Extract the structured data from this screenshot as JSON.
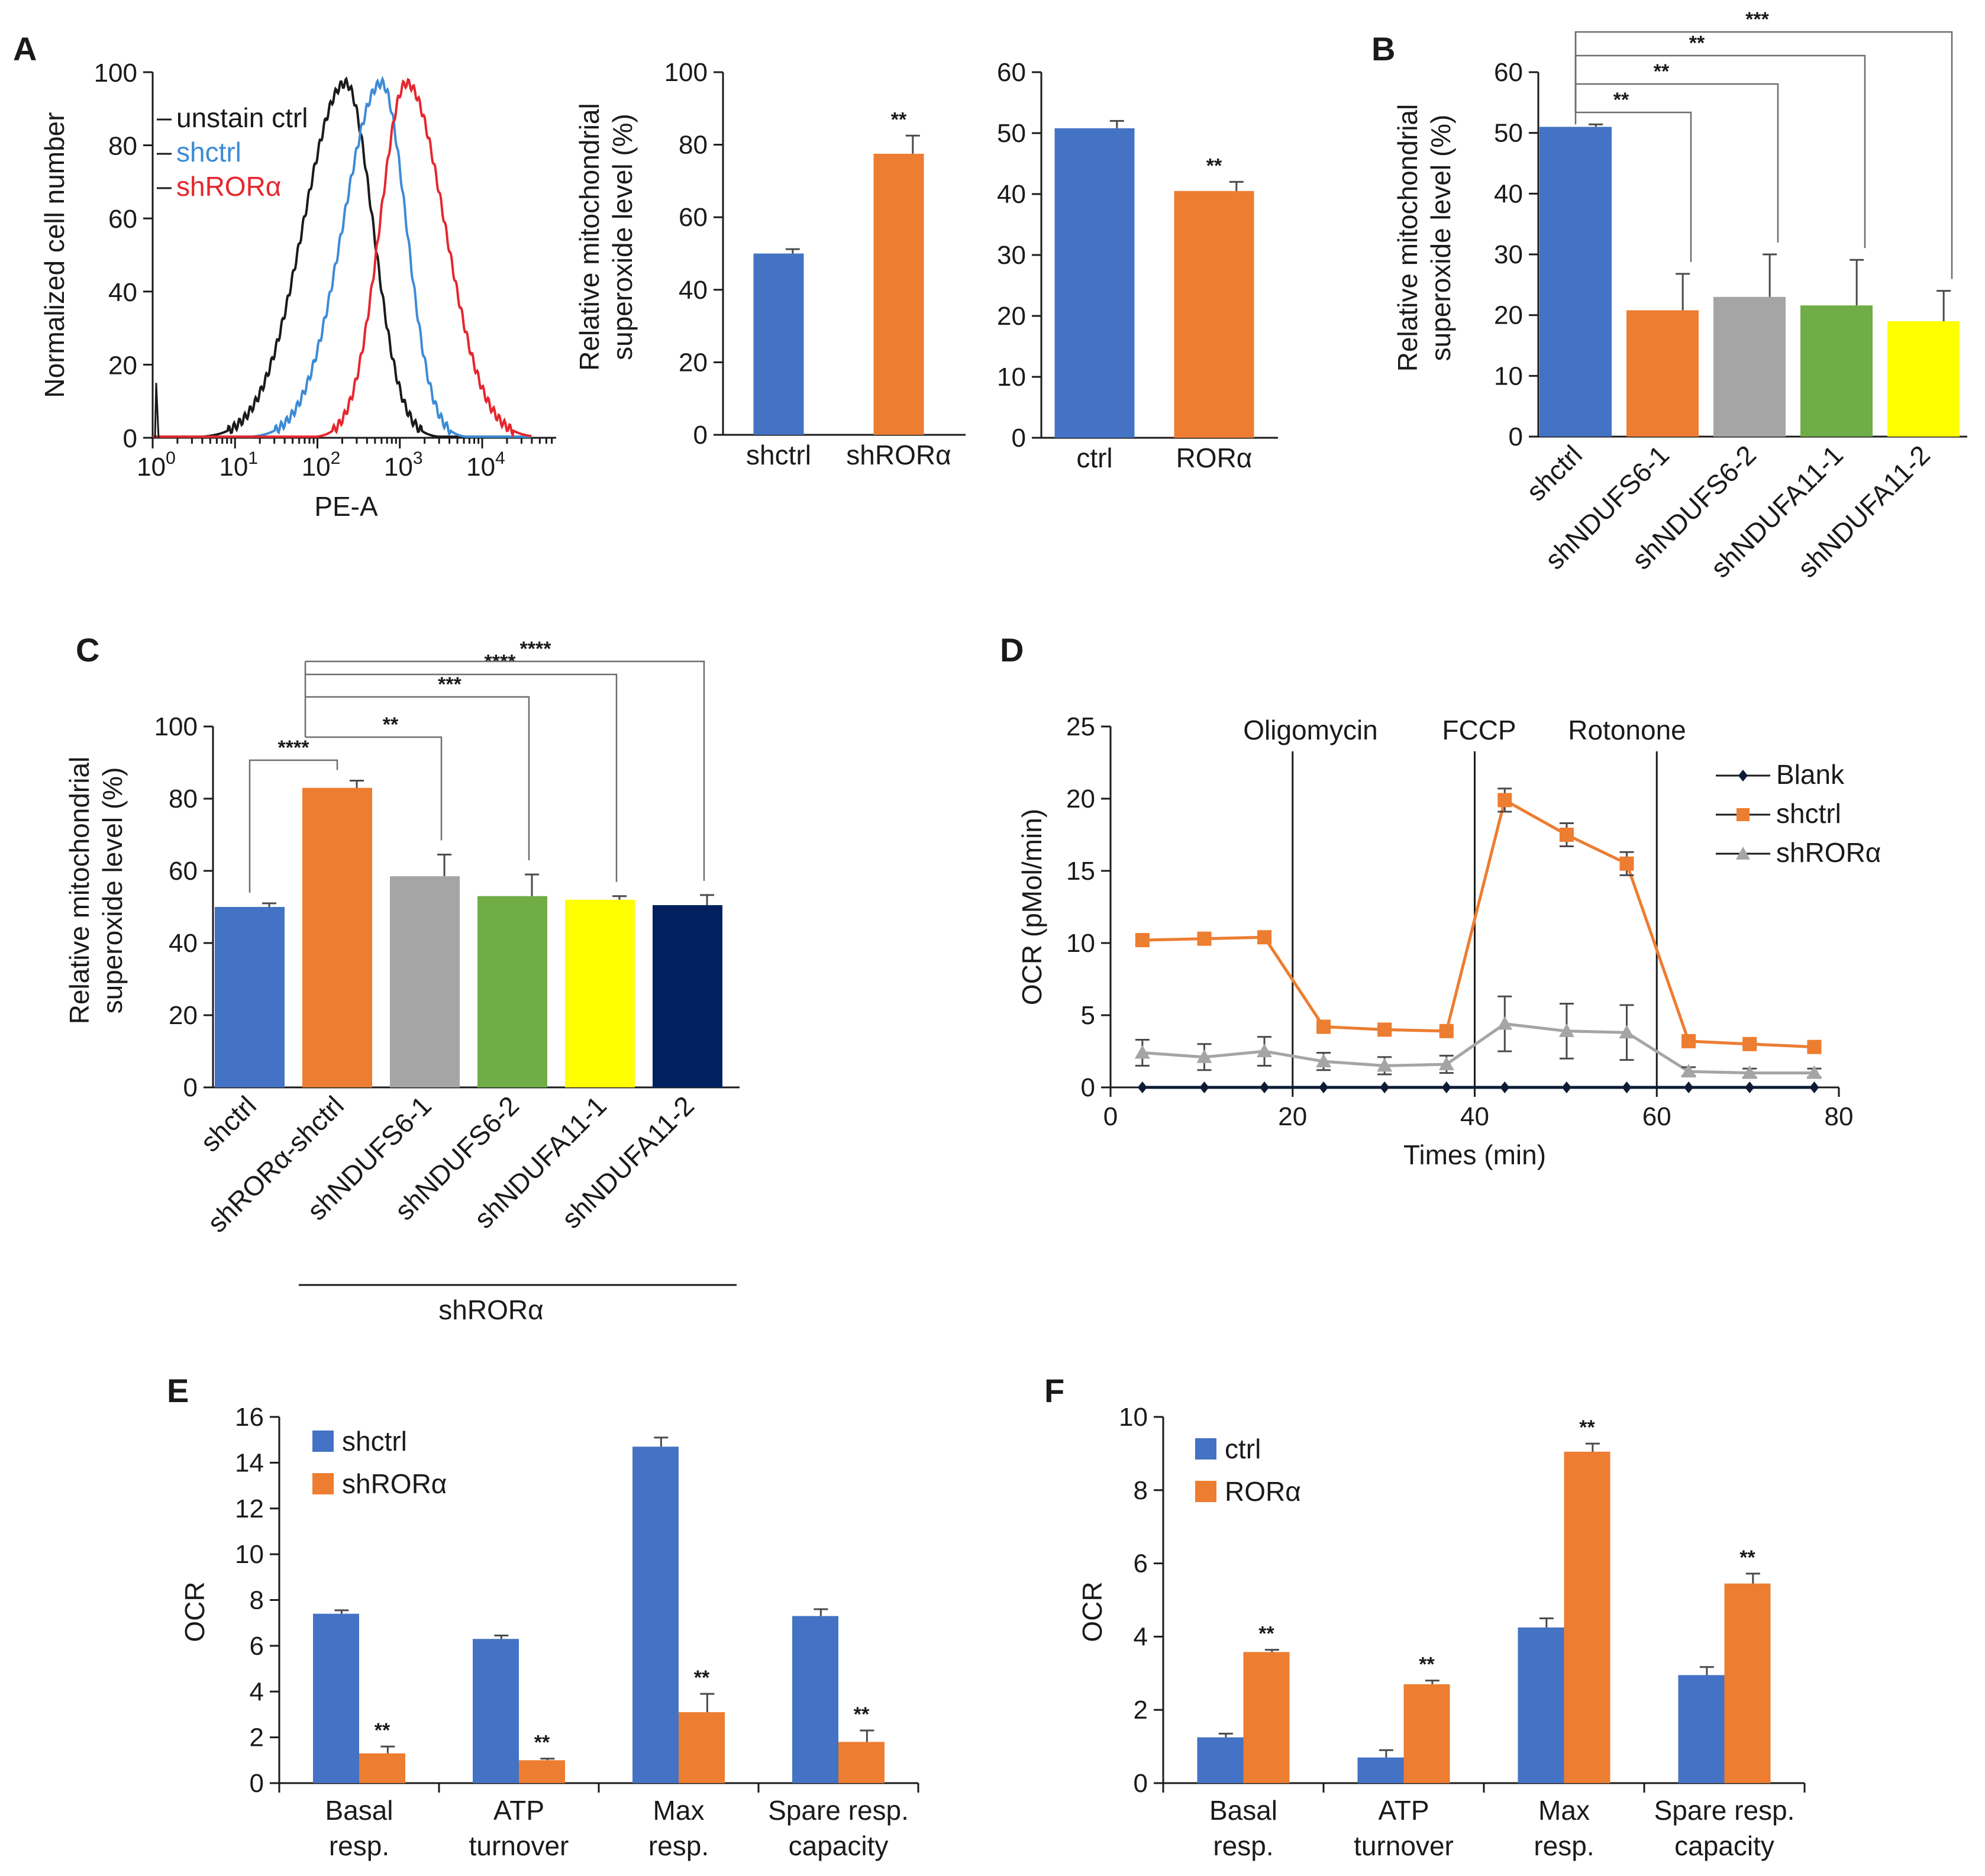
{
  "chart_data": [
    {
      "id": "A1",
      "panel": "A",
      "type": "line",
      "subtype": "flow-cytometry-histogram",
      "xlabel": "PE-A",
      "ylabel": "Normalized cell number",
      "xscale": "log",
      "xlim": [
        1,
        60000
      ],
      "ylim": [
        0,
        100
      ],
      "yticks": [
        0,
        20,
        40,
        60,
        80,
        100
      ],
      "xticks": [
        {
          "base": "10",
          "exp": "0"
        },
        {
          "base": "10",
          "exp": "1"
        },
        {
          "base": "10",
          "exp": "2"
        },
        {
          "base": "10",
          "exp": "3"
        },
        {
          "base": "10",
          "exp": "4"
        }
      ],
      "legend_position": "top-left",
      "series": [
        {
          "name": "unstain ctrl",
          "color": "#1a1a1a",
          "peak_x": 220,
          "sigma_log": 0.33,
          "skew": "left-tail",
          "peak_y": 97
        },
        {
          "name": "shctrl",
          "color": "#3d8bd6",
          "peak_x": 600,
          "sigma_log": 0.3,
          "skew": "left-tail",
          "peak_y": 97
        },
        {
          "name": "shRORα",
          "color": "#e6262e",
          "peak_x": 1200,
          "sigma_log": 0.32,
          "skew": "right-tail",
          "peak_y": 97
        }
      ]
    },
    {
      "id": "A2",
      "panel": "A",
      "type": "bar",
      "ylabel_lines": [
        "Relative mitochondrial",
        "superoxide level (%)"
      ],
      "ylim": [
        0,
        100
      ],
      "yticks": [
        0,
        20,
        40,
        60,
        80,
        100
      ],
      "categories": [
        "shctrl",
        "shRORα"
      ],
      "values": [
        50,
        77.5
      ],
      "errors": [
        1.2,
        5
      ],
      "colors": [
        "#4472c4",
        "#ed7d31"
      ],
      "annotations": [
        "",
        "**"
      ]
    },
    {
      "id": "A3",
      "panel": "A",
      "type": "bar",
      "ylabel_lines": [],
      "ylim": [
        0,
        60
      ],
      "yticks": [
        0,
        10,
        20,
        30,
        40,
        50,
        60
      ],
      "categories": [
        "ctrl",
        "RORα"
      ],
      "values": [
        50.8,
        40.5
      ],
      "errors": [
        1.2,
        1.5
      ],
      "colors": [
        "#4472c4",
        "#ed7d31"
      ],
      "annotations": [
        "",
        "**"
      ]
    },
    {
      "id": "B",
      "panel": "B",
      "type": "bar",
      "ylabel_lines": [
        "Relative mitochondrial",
        "superoxide level (%)"
      ],
      "ylim": [
        0,
        60
      ],
      "yticks": [
        0,
        10,
        20,
        30,
        40,
        50,
        60
      ],
      "categories": [
        "shctrl",
        "shNDUFS6-1",
        "shNDUFS6-2",
        "shNDUFA11-1",
        "shNDUFA11-2"
      ],
      "values": [
        51,
        20.8,
        23,
        21.6,
        19
      ],
      "errors": [
        0.4,
        6,
        7,
        7.5,
        5
      ],
      "colors": [
        "#4472c4",
        "#ed7d31",
        "#a5a5a5",
        "#70ad47",
        "#ffff00"
      ],
      "comparisons": [
        {
          "from": 0,
          "to": 1,
          "label": "**"
        },
        {
          "from": 0,
          "to": 2,
          "label": "**"
        },
        {
          "from": 0,
          "to": 3,
          "label": "**"
        },
        {
          "from": 0,
          "to": 4,
          "label": "***"
        }
      ]
    },
    {
      "id": "C",
      "panel": "C",
      "type": "bar",
      "ylabel_lines": [
        "Relative mitochondrial",
        "superoxide level (%)"
      ],
      "ylim": [
        0,
        100
      ],
      "yticks": [
        0,
        20,
        40,
        60,
        80,
        100
      ],
      "categories": [
        "shctrl",
        "shRORα-shctrl",
        "shNDUFS6-1",
        "shNDUFS6-2",
        "shNDUFA11-1",
        "shNDUFA11-2"
      ],
      "values": [
        50,
        83,
        58.5,
        53,
        52,
        50.5
      ],
      "errors": [
        1,
        2,
        6,
        6,
        1,
        2.8
      ],
      "colors": [
        "#4472c4",
        "#ed7d31",
        "#a5a5a5",
        "#70ad47",
        "#ffff00",
        "#002060"
      ],
      "group_label": "shRORα",
      "group_members": [
        1,
        2,
        3,
        4,
        5
      ],
      "comparisons": [
        {
          "from": 0,
          "to": 1,
          "label": "****"
        },
        {
          "from": 1,
          "to": 2,
          "label": "**"
        },
        {
          "from": 1,
          "to": 3,
          "label": "***"
        },
        {
          "from": 1,
          "to": 4,
          "label": "****"
        },
        {
          "from": 1,
          "to": 5,
          "label": "****"
        }
      ]
    },
    {
      "id": "D",
      "panel": "D",
      "type": "line",
      "xlabel": "Times (min)",
      "ylabel": "OCR (pMol/min)",
      "xlim": [
        0,
        80
      ],
      "ylim": [
        0,
        25
      ],
      "xticks": [
        0,
        20,
        40,
        60,
        80
      ],
      "yticks": [
        0,
        5,
        10,
        15,
        20,
        25
      ],
      "legend_position": "top-right",
      "events": [
        {
          "label": "Oligomycin",
          "x": 20,
          "color": "#1a1a1a"
        },
        {
          "label": "FCCP",
          "x": 40,
          "color": "#9c9c9c"
        },
        {
          "label": "Rotonone",
          "x": 60,
          "color": "#1a1a1a"
        }
      ],
      "x": [
        3.5,
        10.3,
        16.9,
        23.4,
        30.1,
        36.9,
        43.3,
        50.1,
        56.7,
        63.5,
        70.2,
        77.3
      ],
      "series": [
        {
          "name": "Blank",
          "color": "#0d1b35",
          "marker": "diamond",
          "values": [
            0,
            0,
            0,
            0,
            0,
            0,
            0,
            0,
            0,
            0,
            0,
            0
          ],
          "errors": [
            0,
            0,
            0,
            0,
            0,
            0,
            0,
            0,
            0,
            0,
            0,
            0
          ]
        },
        {
          "name": "shctrl",
          "color": "#ed7d31",
          "marker": "square",
          "values": [
            10.2,
            10.3,
            10.4,
            4.2,
            4.0,
            3.9,
            19.9,
            17.5,
            15.5,
            3.2,
            3.0,
            2.8
          ],
          "errors": [
            0.3,
            0.4,
            0.4,
            0.2,
            0.2,
            0.2,
            0.8,
            0.8,
            0.8,
            0.2,
            0.2,
            0.2
          ]
        },
        {
          "name": "shRORα",
          "color": "#a5a5a5",
          "marker": "triangle",
          "values": [
            2.4,
            2.1,
            2.5,
            1.8,
            1.5,
            1.6,
            4.4,
            3.9,
            3.8,
            1.1,
            1.0,
            1.0
          ],
          "errors": [
            0.9,
            0.9,
            1.0,
            0.6,
            0.6,
            0.6,
            1.9,
            1.9,
            1.9,
            0.3,
            0.3,
            0.3
          ]
        }
      ]
    },
    {
      "id": "E",
      "panel": "E",
      "type": "bar",
      "ylabel": "OCR",
      "ylim": [
        0,
        16
      ],
      "yticks": [
        0,
        2,
        4,
        6,
        8,
        10,
        12,
        14,
        16
      ],
      "categories": [
        [
          "Basal",
          "resp."
        ],
        [
          "ATP",
          "turnover"
        ],
        [
          "Max",
          "resp."
        ],
        [
          "Spare resp.",
          "capacity"
        ]
      ],
      "legend_position": "top-left",
      "series": [
        {
          "name": "shctrl",
          "color": "#4472c4",
          "values": [
            7.4,
            6.3,
            14.7,
            7.3
          ],
          "errors": [
            0.15,
            0.15,
            0.4,
            0.3
          ],
          "annotations": [
            "",
            "",
            "",
            ""
          ]
        },
        {
          "name": "shRORα",
          "color": "#ed7d31",
          "values": [
            1.3,
            1.0,
            3.1,
            1.8
          ],
          "errors": [
            0.3,
            0.07,
            0.8,
            0.5
          ],
          "annotations": [
            "**",
            "**",
            "**",
            "**"
          ]
        }
      ]
    },
    {
      "id": "F",
      "panel": "F",
      "type": "bar",
      "ylabel": "OCR",
      "ylim": [
        0,
        10
      ],
      "yticks": [
        0,
        2,
        4,
        6,
        8,
        10
      ],
      "categories": [
        [
          "Basal",
          "resp."
        ],
        [
          "ATP",
          "turnover"
        ],
        [
          "Max",
          "resp."
        ],
        [
          "Spare resp.",
          "capacity"
        ]
      ],
      "legend_position": "top-left",
      "series": [
        {
          "name": "ctrl",
          "color": "#4472c4",
          "values": [
            1.25,
            0.7,
            4.25,
            2.95
          ],
          "errors": [
            0.1,
            0.2,
            0.25,
            0.22
          ],
          "annotations": [
            "",
            "",
            "",
            ""
          ]
        },
        {
          "name": "RORα",
          "color": "#ed7d31",
          "values": [
            3.58,
            2.7,
            9.05,
            5.45
          ],
          "errors": [
            0.06,
            0.1,
            0.22,
            0.27
          ],
          "annotations": [
            "**",
            "**",
            "**",
            "**"
          ]
        }
      ]
    }
  ]
}
